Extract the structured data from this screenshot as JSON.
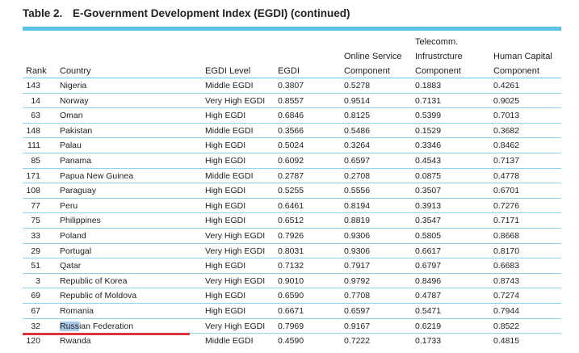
{
  "table": {
    "number": "Table 2.",
    "title": "E-Government Development Index (EGDI) (continued)",
    "headers": {
      "rank": "Rank",
      "country": "Country",
      "level": "EGDI Level",
      "egdi": "EGDI",
      "osc_line1": "Online Service",
      "osc_line2": "Component",
      "tic_line1": "Telecomm.",
      "tic_line2": "Infrustrcture",
      "tic_line3": "Component",
      "hcc_line1": "Human Capital",
      "hcc_line2": "Component"
    },
    "rows": [
      {
        "rank": "143",
        "country": "Nigeria",
        "level": "Middle EGDI",
        "egdi": "0.3807",
        "osc": "0.5278",
        "tic": "0.1883",
        "hcc": "0.4261"
      },
      {
        "rank": "14",
        "country": "Norway",
        "level": "Very High EGDI",
        "egdi": "0.8557",
        "osc": "0.9514",
        "tic": "0.7131",
        "hcc": "0.9025"
      },
      {
        "rank": "63",
        "country": "Oman",
        "level": "High EGDI",
        "egdi": "0.6846",
        "osc": "0.8125",
        "tic": "0.5399",
        "hcc": "0.7013"
      },
      {
        "rank": "148",
        "country": "Pakistan",
        "level": "Middle EGDI",
        "egdi": "0.3566",
        "osc": "0.5486",
        "tic": "0.1529",
        "hcc": "0.3682"
      },
      {
        "rank": "111",
        "country": "Palau",
        "level": "High EGDI",
        "egdi": "0.5024",
        "osc": "0.3264",
        "tic": "0.3346",
        "hcc": "0.8462"
      },
      {
        "rank": "85",
        "country": "Panama",
        "level": "High EGDI",
        "egdi": "0.6092",
        "osc": "0.6597",
        "tic": "0.4543",
        "hcc": "0.7137"
      },
      {
        "rank": "171",
        "country": "Papua New Guinea",
        "level": "Middle EGDI",
        "egdi": "0.2787",
        "osc": "0.2708",
        "tic": "0.0875",
        "hcc": "0.4778"
      },
      {
        "rank": "108",
        "country": "Paraguay",
        "level": "High EGDI",
        "egdi": "0.5255",
        "osc": "0.5556",
        "tic": "0.3507",
        "hcc": "0.6701"
      },
      {
        "rank": "77",
        "country": "Peru",
        "level": "High EGDI",
        "egdi": "0.6461",
        "osc": "0.8194",
        "tic": "0.3913",
        "hcc": "0.7276"
      },
      {
        "rank": "75",
        "country": "Philippines",
        "level": "High EGDI",
        "egdi": "0.6512",
        "osc": "0.8819",
        "tic": "0.3547",
        "hcc": "0.7171"
      },
      {
        "rank": "33",
        "country": "Poland",
        "level": "Very High EGDI",
        "egdi": "0.7926",
        "osc": "0.9306",
        "tic": "0.5805",
        "hcc": "0.8668"
      },
      {
        "rank": "29",
        "country": "Portugal",
        "level": "Very High EGDI",
        "egdi": "0.8031",
        "osc": "0.9306",
        "tic": "0.6617",
        "hcc": "0.8170"
      },
      {
        "rank": "51",
        "country": "Qatar",
        "level": "High EGDI",
        "egdi": "0.7132",
        "osc": "0.7917",
        "tic": "0.6797",
        "hcc": "0.6683"
      },
      {
        "rank": "3",
        "country": "Republic of Korea",
        "level": "Very High EGDI",
        "egdi": "0.9010",
        "osc": "0.9792",
        "tic": "0.8496",
        "hcc": "0.8743"
      },
      {
        "rank": "69",
        "country": "Republic of Moldova",
        "level": "High EGDI",
        "egdi": "0.6590",
        "osc": "0.7708",
        "tic": "0.4787",
        "hcc": "0.7274"
      },
      {
        "rank": "67",
        "country": "Romania",
        "level": "High EGDI",
        "egdi": "0.6671",
        "osc": "0.6597",
        "tic": "0.5471",
        "hcc": "0.7944"
      },
      {
        "rank": "32",
        "country_hl": "Russ",
        "country_rest": "ian Federation",
        "level": "Very High EGDI",
        "egdi": "0.7969",
        "osc": "0.9167",
        "tic": "0.6219",
        "hcc": "0.8522"
      },
      {
        "rank": "120",
        "country": "Rwanda",
        "level": "Middle EGDI",
        "egdi": "0.4590",
        "osc": "0.7222",
        "tic": "0.1733",
        "hcc": "0.4815"
      }
    ]
  },
  "colors": {
    "rule": "#5bc4e6",
    "selection": "#a9c9e6",
    "underline": "#e0323d"
  }
}
